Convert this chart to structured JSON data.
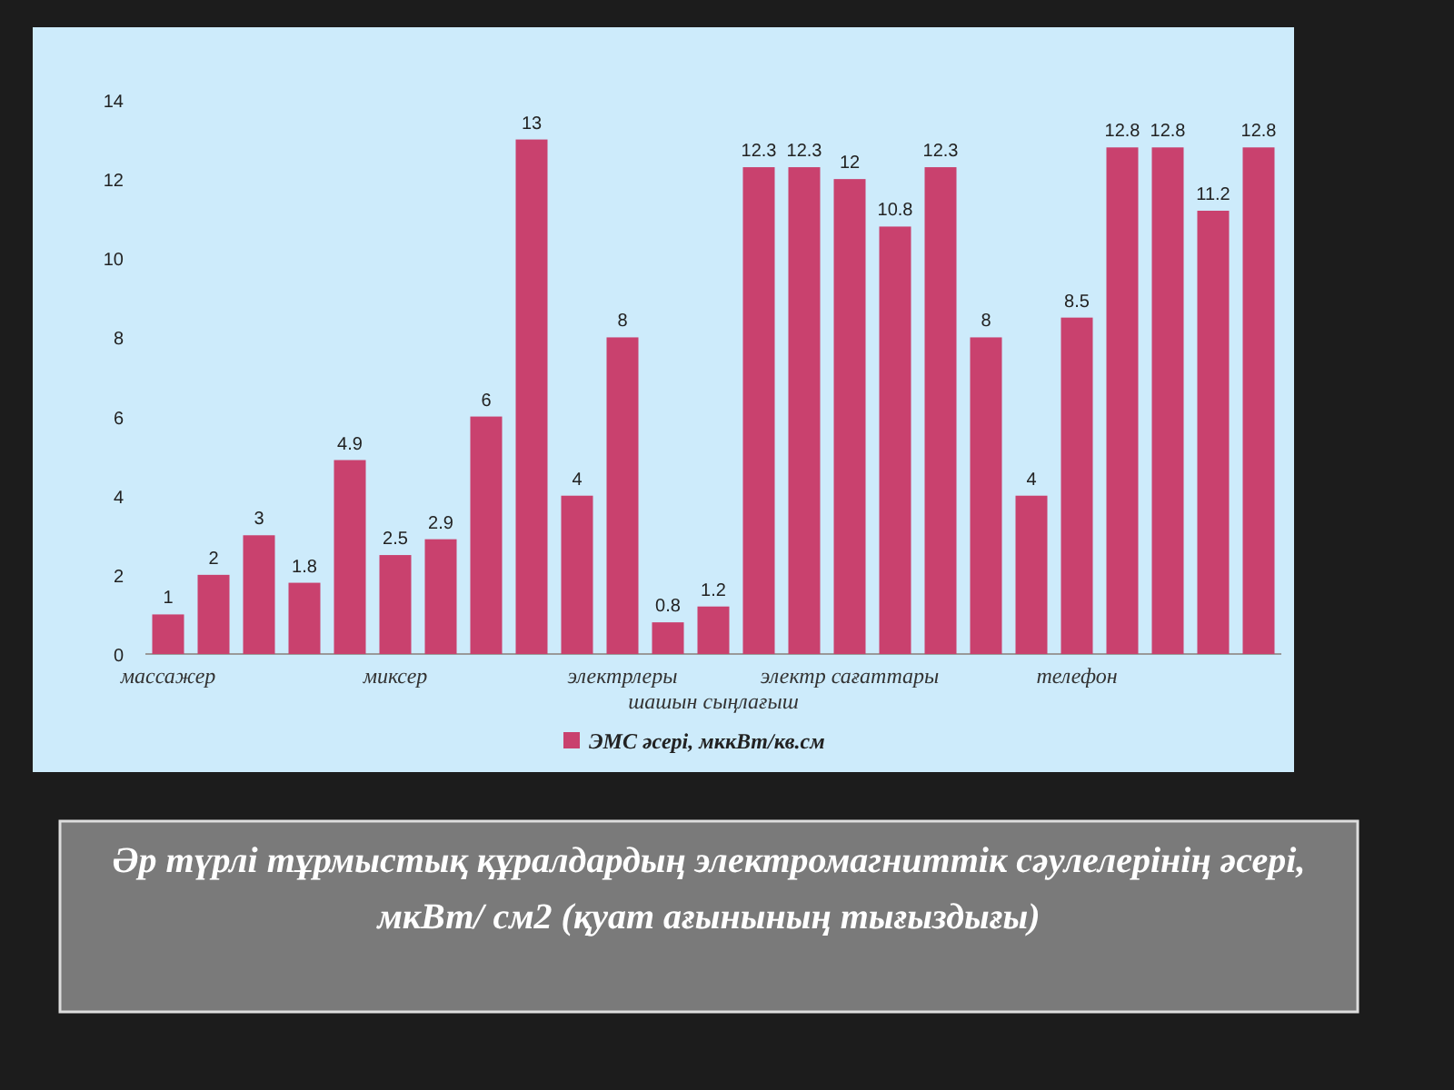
{
  "chart_data": {
    "type": "bar",
    "title": "Әр түрлі тұрмыстық құралдардың электромагниттік сәулелерінің әсері, мкВт/ см2 (қуат ағынының тығыздығы)",
    "categories": [
      "массажер",
      null,
      null,
      null,
      null,
      "миксер",
      null,
      null,
      null,
      null,
      "электрлеры",
      null,
      "шашын сыңлағыш",
      null,
      null,
      "электр сағаттары",
      null,
      null,
      null,
      null,
      "телефон",
      null,
      null,
      null,
      null
    ],
    "series": [
      {
        "name": "ЭМС әсері, мккВт/кв.см",
        "color": "#c9416e",
        "values": [
          1,
          2,
          3,
          1.8,
          4.9,
          2.5,
          2.9,
          6,
          13,
          4,
          8,
          0.8,
          1.2,
          12.3,
          12.3,
          12,
          10.8,
          12.3,
          8,
          4,
          8.5,
          12.8,
          12.8,
          11.2,
          12.8
        ]
      }
    ],
    "ylim": [
      0,
      14
    ],
    "yticks": [
      0,
      2,
      4,
      6,
      8,
      10,
      12,
      14
    ],
    "data_labels": true,
    "legend": "bottom"
  }
}
